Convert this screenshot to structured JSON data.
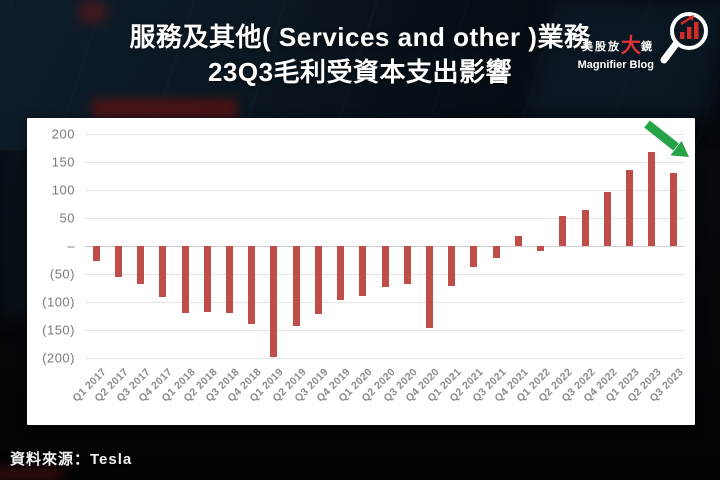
{
  "header": {
    "title_line1": "服務及其他( Services and other )業務",
    "title_line2": "23Q3毛利受資本支出影響"
  },
  "logo": {
    "brand_prefix": "美股放",
    "brand_emphasis": "大",
    "brand_suffix": "鏡",
    "subtitle": "Magnifier Blog"
  },
  "footer": {
    "source": "資料來源：Tesla"
  },
  "colors": {
    "bar": "#bf4d4a",
    "annotation_arrow": "#27a347",
    "brand_red": "#e03434",
    "gridline": "#e4e4e6"
  },
  "chart_data": {
    "type": "bar",
    "title": "服務及其他( Services and other )業務 23Q3毛利受資本支出影響",
    "xlabel": "",
    "ylabel": "",
    "ylim": [
      -200,
      200
    ],
    "ytick_step": 50,
    "ytick_labels": [
      "200",
      "150",
      "100",
      "50",
      "–",
      "(50)",
      "(100)",
      "(150)",
      "(200)"
    ],
    "grid": true,
    "legend": "none",
    "annotation": "green arrow pointing at Q3 2023 bar",
    "categories": [
      "Q1 2017",
      "Q2 2017",
      "Q3 2017",
      "Q4 2017",
      "Q1 2018",
      "Q2 2018",
      "Q3 2018",
      "Q4 2018",
      "Q1 2019",
      "Q2 2019",
      "Q3 2019",
      "Q4 2019",
      "Q1 2020",
      "Q2 2020",
      "Q3 2020",
      "Q4 2020",
      "Q1 2021",
      "Q2 2021",
      "Q3 2021",
      "Q4 2021",
      "Q1 2022",
      "Q2 2022",
      "Q3 2022",
      "Q4 2022",
      "Q1 2023",
      "Q2 2023",
      "Q3 2023"
    ],
    "values": [
      -26,
      -55,
      -67,
      -91,
      -120,
      -117,
      -120,
      -140,
      -198,
      -142,
      -122,
      -96,
      -90,
      -74,
      -67,
      -147,
      -71,
      -38,
      -21,
      18,
      -9,
      54,
      65,
      96,
      136,
      168,
      131
    ]
  }
}
